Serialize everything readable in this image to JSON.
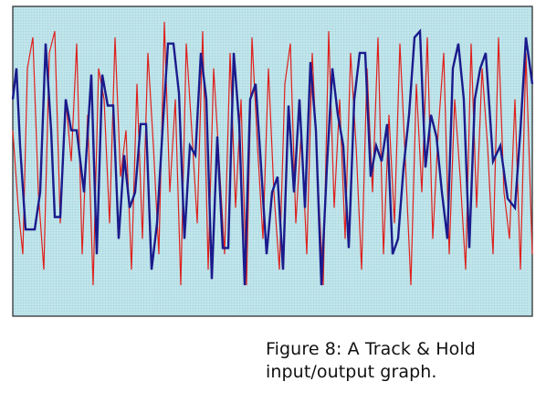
{
  "caption": {
    "line1": "Figure 8: A Track & Hold",
    "line2": "input/output graph."
  },
  "colors": {
    "background": "#ffffff",
    "plot_fill": "#bfe4ea",
    "plot_dots": "#9ccfd9",
    "plot_border": "#222222",
    "input_line": "#e0201c",
    "output_line": "#1a1a8c"
  },
  "chart_data": {
    "type": "line",
    "title": "",
    "xlabel": "",
    "ylabel": "",
    "xlim": [
      0,
      569
    ],
    "ylim": [
      0,
      100
    ],
    "grid": false,
    "legend": "none",
    "series": [
      {
        "role": "input",
        "color": "#e0201c",
        "x": [
          0,
          6,
          11,
          16,
          22,
          28,
          34,
          40,
          46,
          52,
          58,
          64,
          70,
          76,
          82,
          88,
          94,
          100,
          106,
          112,
          118,
          124,
          130,
          136,
          142,
          148,
          154,
          160,
          166,
          172,
          178,
          184,
          190,
          196,
          202,
          208,
          214,
          220,
          226,
          232,
          238,
          244,
          250,
          256,
          262,
          268,
          274,
          280,
          286,
          292,
          298,
          304,
          310,
          316,
          322,
          328,
          334,
          340,
          346,
          352,
          358,
          364,
          370,
          376,
          382,
          388,
          394,
          400,
          406,
          412,
          418,
          424,
          430,
          436,
          442,
          448,
          454,
          460,
          466,
          472,
          478,
          484,
          490,
          496,
          502,
          508,
          514,
          520,
          526,
          532,
          538,
          544,
          550,
          556,
          562,
          569
        ],
        "y": [
          60,
          35,
          20,
          80,
          90,
          40,
          15,
          85,
          92,
          30,
          70,
          50,
          88,
          20,
          65,
          10,
          80,
          70,
          30,
          90,
          45,
          60,
          15,
          75,
          25,
          85,
          55,
          20,
          95,
          40,
          70,
          10,
          88,
          60,
          30,
          92,
          15,
          80,
          50,
          20,
          85,
          35,
          70,
          10,
          90,
          55,
          25,
          80,
          40,
          15,
          75,
          88,
          30,
          60,
          20,
          85,
          45,
          10,
          92,
          35,
          70,
          25,
          85,
          55,
          15,
          80,
          40,
          90,
          20,
          65,
          30,
          88,
          50,
          10,
          75,
          40,
          90,
          25,
          60,
          85,
          20,
          70,
          45,
          15,
          88,
          35,
          80,
          55,
          20,
          90,
          40,
          25,
          70,
          15,
          85,
          20
        ]
      },
      {
        "role": "output",
        "color": "#1a1a8c",
        "x": [
          0,
          4,
          8,
          14,
          24,
          30,
          36,
          42,
          46,
          52,
          58,
          64,
          70,
          78,
          86,
          92,
          98,
          104,
          110,
          116,
          122,
          128,
          134,
          140,
          146,
          152,
          158,
          164,
          170,
          176,
          182,
          188,
          194,
          200,
          206,
          212,
          218,
          224,
          230,
          236,
          242,
          248,
          254,
          260,
          266,
          272,
          278,
          284,
          290,
          296,
          302,
          308,
          314,
          320,
          326,
          332,
          338,
          344,
          350,
          356,
          362,
          368,
          374,
          380,
          386,
          392,
          398,
          404,
          410,
          416,
          422,
          428,
          434,
          440,
          446,
          452,
          458,
          464,
          470,
          476,
          482,
          488,
          494,
          500,
          506,
          512,
          518,
          526,
          534,
          542,
          550,
          556,
          562,
          569
        ],
        "y": [
          70,
          80,
          55,
          28,
          28,
          40,
          88,
          60,
          32,
          32,
          70,
          60,
          60,
          40,
          78,
          20,
          78,
          68,
          68,
          25,
          52,
          35,
          40,
          62,
          62,
          15,
          30,
          60,
          88,
          88,
          72,
          25,
          55,
          52,
          85,
          70,
          12,
          58,
          22,
          22,
          85,
          62,
          10,
          70,
          75,
          48,
          20,
          40,
          45,
          15,
          68,
          40,
          70,
          35,
          82,
          60,
          10,
          48,
          80,
          65,
          55,
          22,
          70,
          85,
          85,
          45,
          55,
          50,
          62,
          20,
          25,
          48,
          65,
          90,
          92,
          48,
          65,
          58,
          40,
          25,
          80,
          88,
          70,
          22,
          70,
          80,
          85,
          50,
          55,
          38,
          35,
          60,
          90,
          75
        ]
      }
    ]
  }
}
